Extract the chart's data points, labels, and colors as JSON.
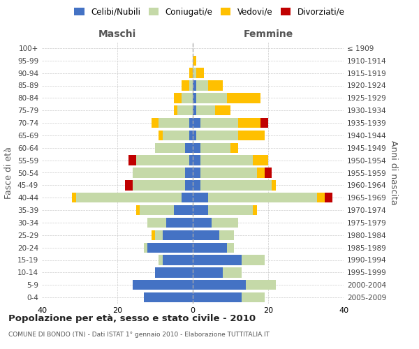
{
  "age_groups": [
    "0-4",
    "5-9",
    "10-14",
    "15-19",
    "20-24",
    "25-29",
    "30-34",
    "35-39",
    "40-44",
    "45-49",
    "50-54",
    "55-59",
    "60-64",
    "65-69",
    "70-74",
    "75-79",
    "80-84",
    "85-89",
    "90-94",
    "95-99",
    "100+"
  ],
  "birth_years": [
    "2005-2009",
    "2000-2004",
    "1995-1999",
    "1990-1994",
    "1985-1989",
    "1980-1984",
    "1975-1979",
    "1970-1974",
    "1965-1969",
    "1960-1964",
    "1955-1959",
    "1950-1954",
    "1945-1949",
    "1940-1944",
    "1935-1939",
    "1930-1934",
    "1925-1929",
    "1920-1924",
    "1915-1919",
    "1910-1914",
    "≤ 1909"
  ],
  "male_celibe": [
    13,
    16,
    10,
    8,
    12,
    8,
    7,
    5,
    3,
    2,
    2,
    1,
    2,
    1,
    1,
    0,
    0,
    0,
    0,
    0,
    0
  ],
  "male_coniugato": [
    0,
    0,
    0,
    1,
    1,
    2,
    5,
    9,
    28,
    14,
    14,
    14,
    8,
    7,
    8,
    4,
    3,
    1,
    0,
    0,
    0
  ],
  "male_vedovo": [
    0,
    0,
    0,
    0,
    0,
    1,
    0,
    1,
    1,
    0,
    0,
    0,
    0,
    1,
    2,
    1,
    2,
    2,
    1,
    0,
    0
  ],
  "male_divorziato": [
    0,
    0,
    0,
    0,
    0,
    0,
    0,
    0,
    0,
    2,
    0,
    2,
    0,
    0,
    0,
    0,
    0,
    0,
    0,
    0,
    0
  ],
  "female_celibe": [
    13,
    14,
    8,
    13,
    9,
    7,
    5,
    4,
    4,
    2,
    2,
    2,
    2,
    1,
    2,
    1,
    1,
    1,
    0,
    0,
    0
  ],
  "female_coniugato": [
    6,
    8,
    5,
    6,
    2,
    4,
    7,
    12,
    29,
    19,
    15,
    14,
    8,
    11,
    10,
    5,
    8,
    3,
    1,
    0,
    0
  ],
  "female_vedovo": [
    0,
    0,
    0,
    0,
    0,
    0,
    0,
    1,
    2,
    1,
    2,
    4,
    2,
    7,
    6,
    4,
    9,
    4,
    2,
    1,
    0
  ],
  "female_divorziato": [
    0,
    0,
    0,
    0,
    0,
    0,
    0,
    0,
    2,
    0,
    2,
    0,
    0,
    0,
    2,
    0,
    0,
    0,
    0,
    0,
    0
  ],
  "colors": {
    "celibe": "#4472c4",
    "coniugato": "#c5d9a8",
    "vedovo": "#ffc000",
    "divorziato": "#c00000"
  },
  "title_main": "Popolazione per età, sesso e stato civile - 2010",
  "title_sub": "COMUNE DI BONDO (TN) - Dati ISTAT 1° gennaio 2010 - Elaborazione TUTTITALIA.IT",
  "xlabel_left": "Maschi",
  "xlabel_right": "Femmine",
  "ylabel_left": "Fasce di età",
  "ylabel_right": "Anni di nascita",
  "xlim": 40,
  "legend_labels": [
    "Celibi/Nubili",
    "Coniugati/e",
    "Vedovi/e",
    "Divorziati/e"
  ],
  "background_color": "#ffffff",
  "grid_color": "#cccccc"
}
